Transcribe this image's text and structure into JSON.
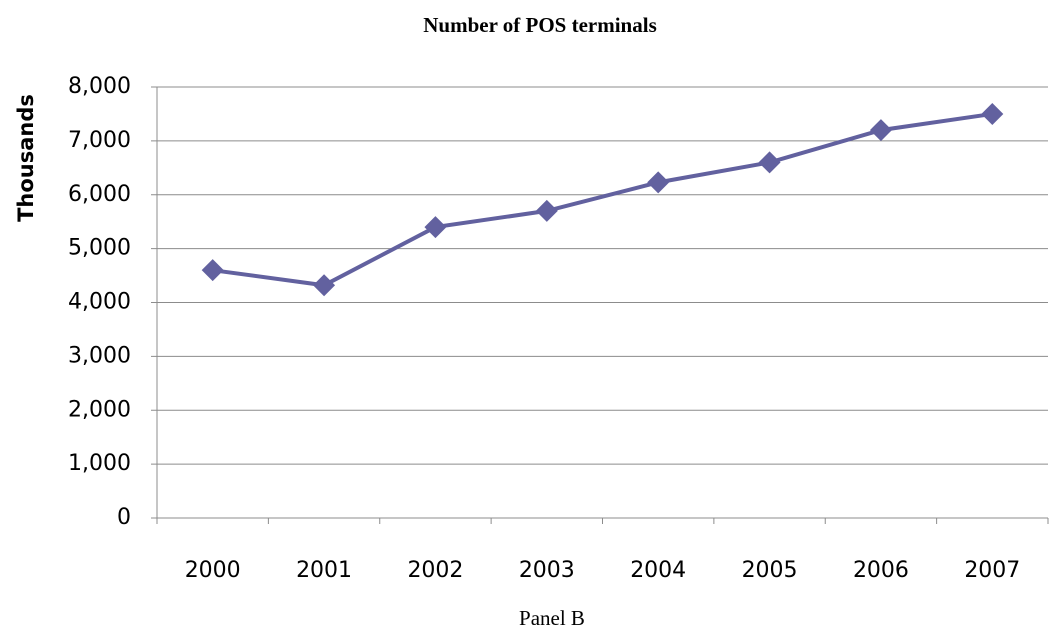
{
  "chart_data": {
    "type": "line",
    "title": "Number of POS terminals",
    "y_label": "Thousands",
    "x_label": "Panel B",
    "categories": [
      "2000",
      "2001",
      "2002",
      "2003",
      "2004",
      "2005",
      "2006",
      "2007"
    ],
    "values": [
      4600,
      4320,
      5400,
      5700,
      6230,
      6600,
      7200,
      7500
    ],
    "color": "#62619f",
    "ylim": [
      0,
      8000
    ],
    "yticks": [
      0,
      {
        "value": 1000,
        "label": "1,000"
      },
      {
        "value": 2000,
        "label": "2,000"
      },
      {
        "value": 3000,
        "label": "3,000"
      },
      {
        "value": 4000,
        "label": "4,000"
      },
      {
        "value": 5000,
        "label": "5,000"
      },
      {
        "value": 6000,
        "label": "6,000"
      },
      {
        "value": 7000,
        "label": "7,000"
      },
      {
        "value": 8000,
        "label": "8,000"
      }
    ],
    "grid": true
  }
}
